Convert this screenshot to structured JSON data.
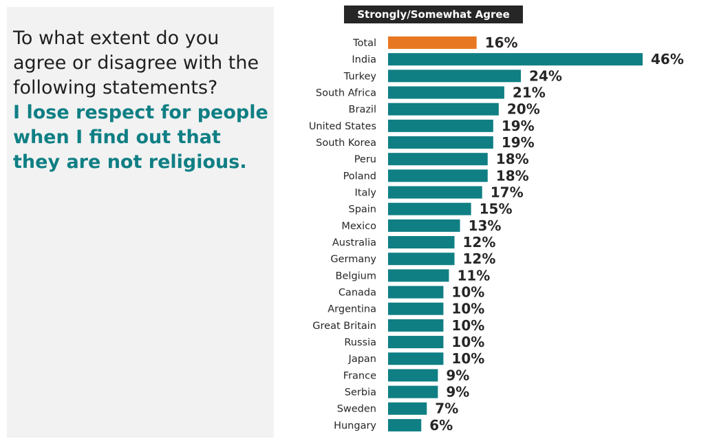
{
  "question": {
    "prompt": "To what extent do you agree or disagree with the following statements?",
    "statement": "I lose respect for people when I find out that they are not religious."
  },
  "colors": {
    "total_bar": "#e87722",
    "country_bar": "#0f7f84",
    "statement_text": "#0f7f84",
    "header_bg": "#262626",
    "panel_bg": "#f2f2f2"
  },
  "chart_data": {
    "type": "bar",
    "orientation": "horizontal",
    "title": "Strongly/Somewhat Agree",
    "unit": "%",
    "categories": [
      "Total",
      "India",
      "Turkey",
      "South Africa",
      "Brazil",
      "United States",
      "South Korea",
      "Peru",
      "Poland",
      "Italy",
      "Spain",
      "Mexico",
      "Australia",
      "Germany",
      "Belgium",
      "Canada",
      "Argentina",
      "Great Britain",
      "Russia",
      "Japan",
      "France",
      "Serbia",
      "Sweden",
      "Hungary"
    ],
    "values": [
      16,
      46,
      24,
      21,
      20,
      19,
      19,
      18,
      18,
      17,
      15,
      13,
      12,
      12,
      11,
      10,
      10,
      10,
      10,
      10,
      9,
      9,
      7,
      6
    ],
    "value_labels": [
      "16%",
      "46%",
      "24%",
      "21%",
      "20%",
      "19%",
      "19%",
      "18%",
      "18%",
      "17%",
      "15%",
      "13%",
      "12%",
      "12%",
      "11%",
      "10%",
      "10%",
      "10%",
      "10%",
      "10%",
      "9%",
      "9%",
      "7%",
      "6%"
    ],
    "highlight_category": "Total",
    "xlim": [
      0,
      46
    ],
    "grid": false,
    "legend": "none"
  }
}
